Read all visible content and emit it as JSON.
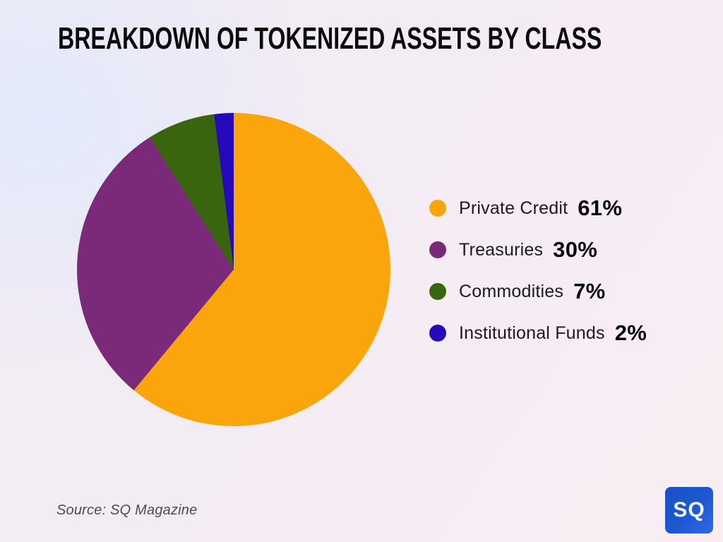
{
  "title": "BREAKDOWN OF TOKENIZED ASSETS BY CLASS",
  "source": "Source: SQ Magazine",
  "logo": {
    "text": "SQ",
    "background": "#1c59d4"
  },
  "background": {
    "left_tint": "#e2e9fa",
    "right_tint": "#f9edf3"
  },
  "legend": {
    "items": [
      {
        "label": "Private Credit",
        "value": "61%"
      },
      {
        "label": "Treasuries",
        "value": "30%"
      },
      {
        "label": "Commodities",
        "value": "7%"
      },
      {
        "label": "Institutional Funds",
        "value": "2%"
      }
    ]
  },
  "chart_data": {
    "type": "pie",
    "title": "BREAKDOWN OF TOKENIZED ASSETS BY CLASS",
    "labels": [
      "Private Credit",
      "Treasuries",
      "Commodities",
      "Institutional Funds"
    ],
    "values": [
      61,
      30,
      7,
      2
    ],
    "colors": [
      "#fba50c",
      "#7b2979",
      "#3a650f",
      "#2609b8"
    ],
    "start_angle_deg": 0,
    "direction": "clockwise",
    "legend_position": "right",
    "source": "SQ Magazine"
  }
}
